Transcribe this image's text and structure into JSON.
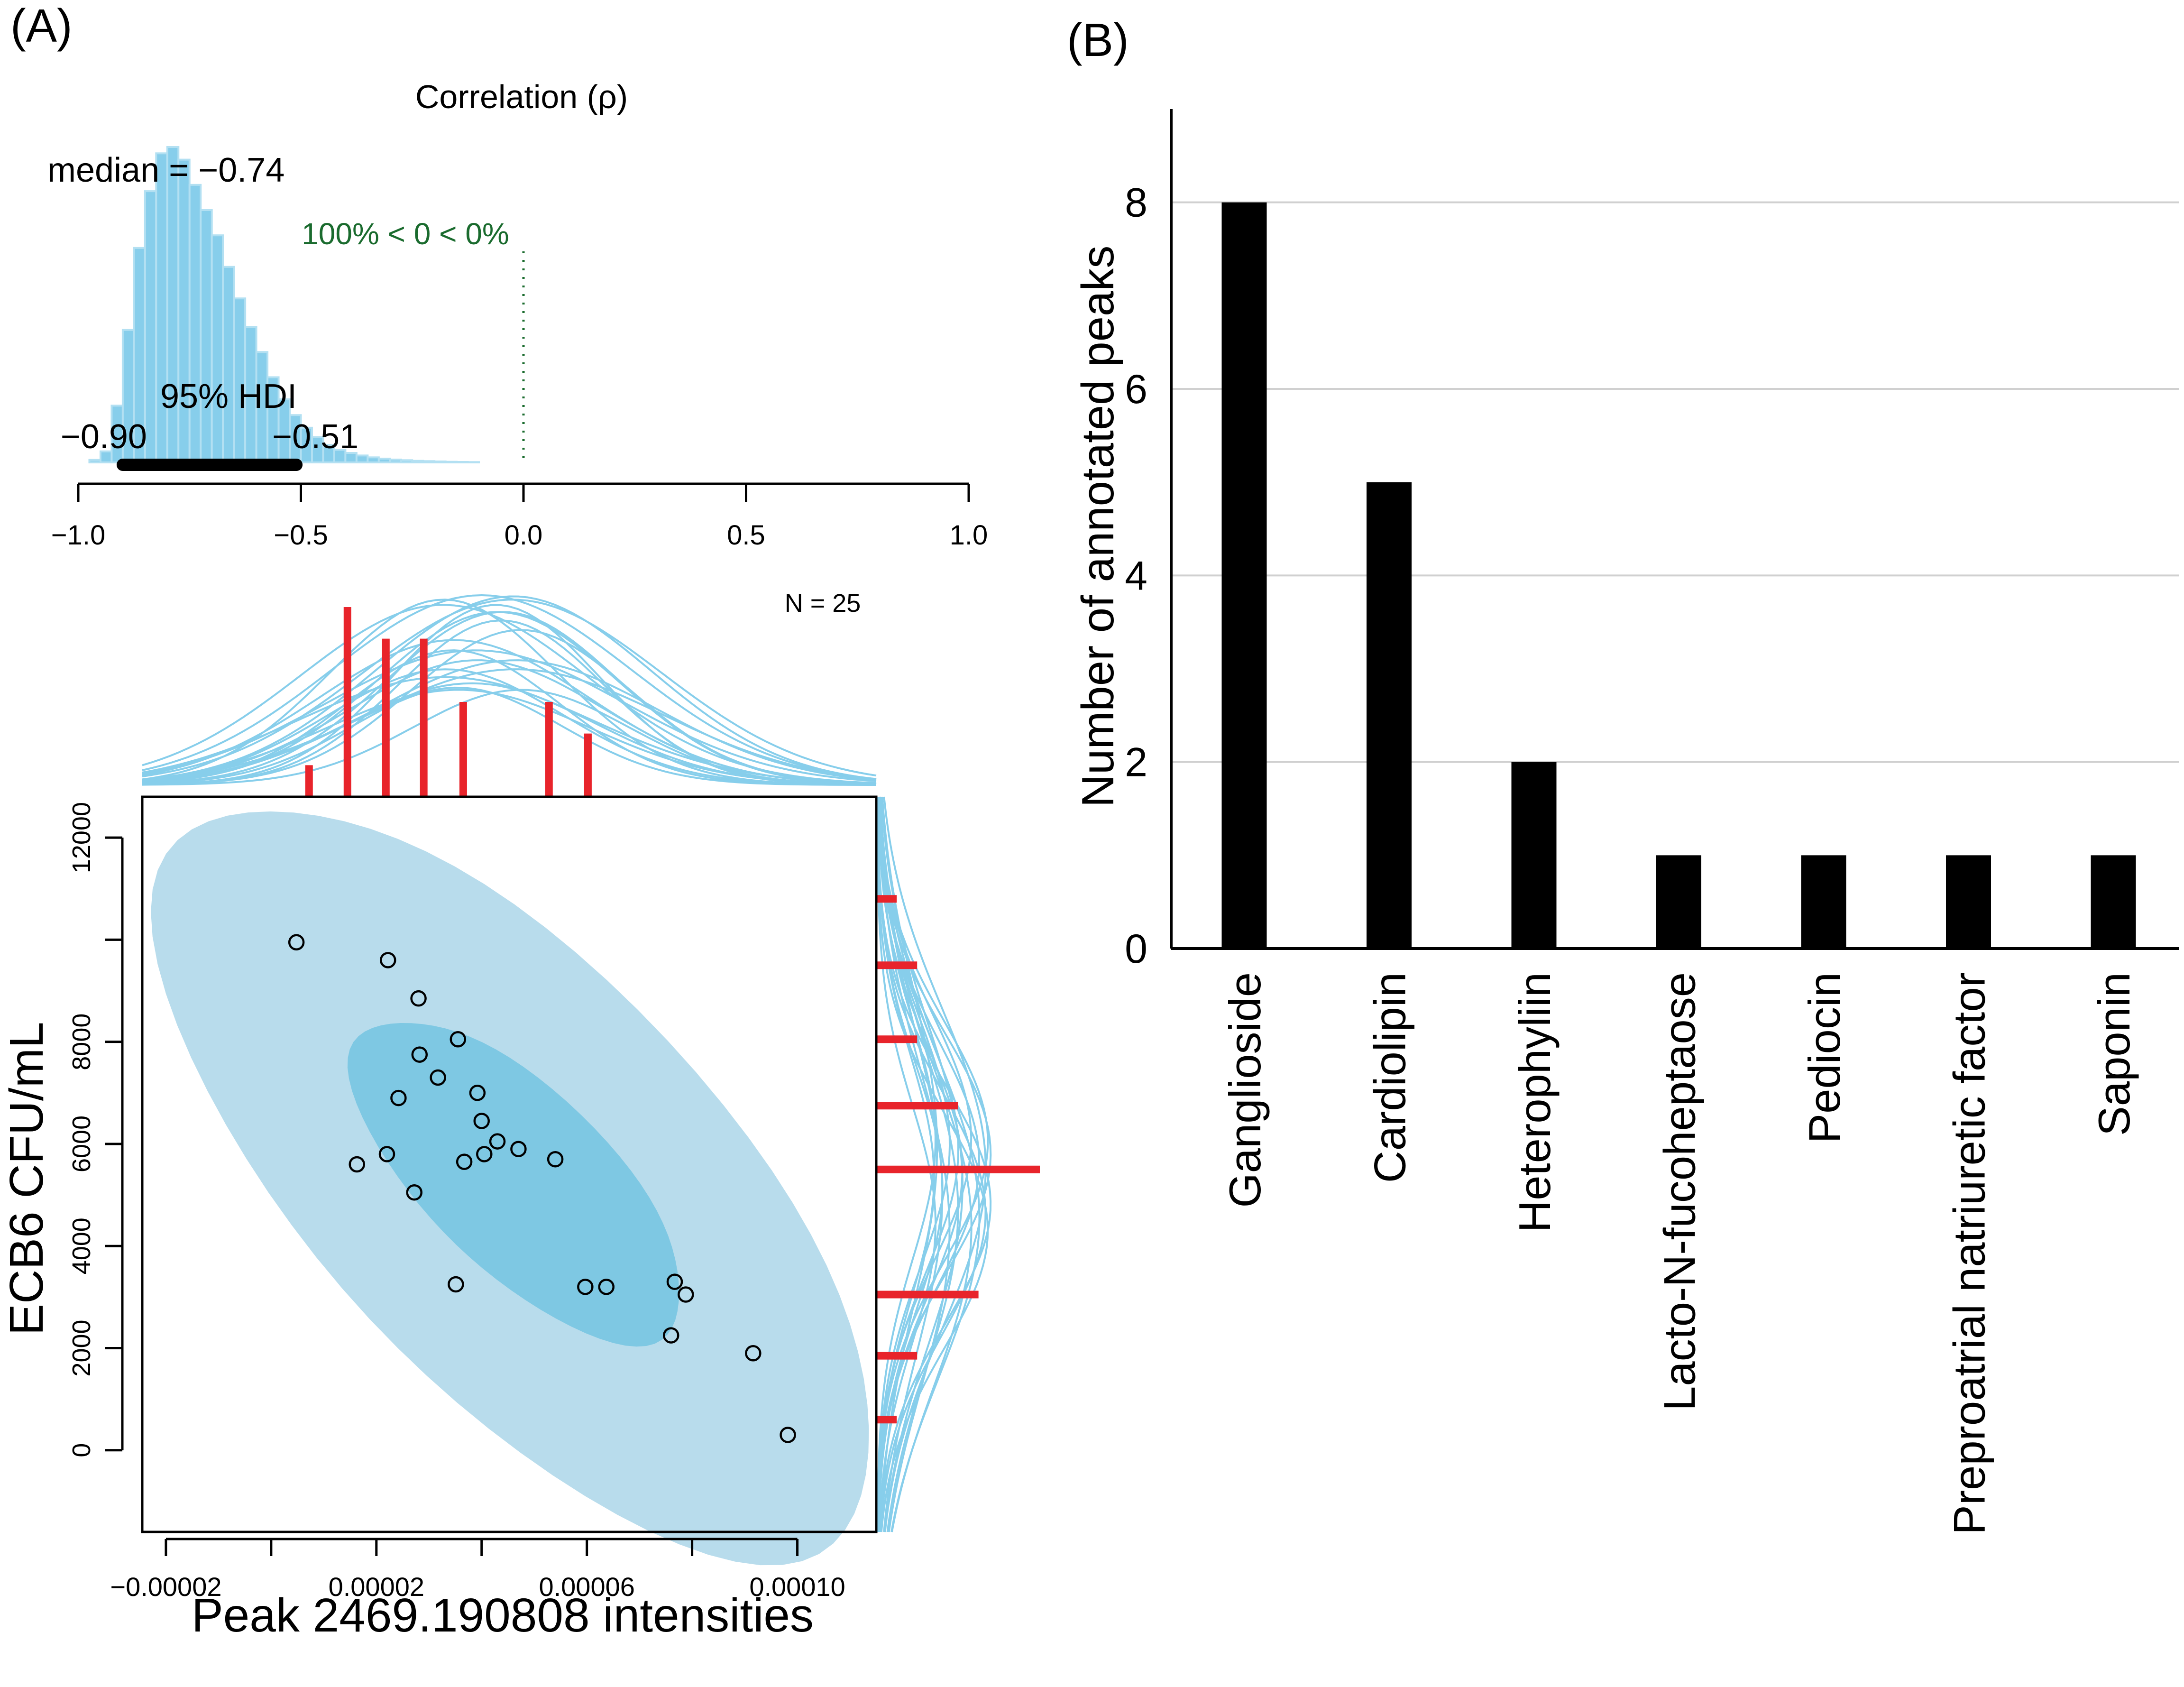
{
  "panel_labels": {
    "a": "(A)",
    "b": "(B)"
  },
  "colors": {
    "posterior_fill": "#87CEEB",
    "posterior_edge": "#b3e0f2",
    "ellipse_outer": "#b8dcec",
    "ellipse_inner": "#7ec8e3",
    "curves": "#87CEEB",
    "marginal_bars": "#e8242b",
    "hdi_bar": "#000000",
    "zero_line": "#1a6b2e",
    "bars_b": "#000000",
    "grid_b": "#d0d0d0"
  },
  "chart_data": [
    {
      "id": "posterior-correlation",
      "type": "histogram",
      "title": "Correlation (ρ)",
      "median_label": "median = −0.74",
      "median": -0.74,
      "comparison_label": "100% < 0 < 0%",
      "comparison_value": 0,
      "hdi_label": "95% HDI",
      "hdi": [
        -0.9,
        -0.51
      ],
      "hdi_low_label": "−0.90",
      "hdi_high_label": "−0.51",
      "xlim": [
        -1.0,
        1.0
      ],
      "xticks": [
        -1.0,
        -0.5,
        0.0,
        0.5,
        1.0
      ],
      "xtick_labels": [
        "−1.0",
        "−0.5",
        "0.0",
        "0.5",
        "1.0"
      ],
      "bin_width": 0.025,
      "bin_start": -0.975,
      "density": [
        0.008,
        0.035,
        0.18,
        0.42,
        0.68,
        0.86,
        0.98,
        1.0,
        0.96,
        0.88,
        0.8,
        0.72,
        0.62,
        0.52,
        0.43,
        0.35,
        0.27,
        0.2,
        0.15,
        0.11,
        0.08,
        0.055,
        0.04,
        0.03,
        0.022,
        0.016,
        0.012,
        0.009,
        0.007,
        0.005,
        0.004,
        0.003,
        0.002,
        0.0015,
        0.001
      ]
    },
    {
      "id": "scatter-ecb6-vs-peak",
      "type": "scatter",
      "n_label": "N = 25",
      "xlabel": "Peak 2469.190808 intensities",
      "ylabel": "ECB6 CFU/mL",
      "xlim": [
        -2.45e-05,
        0.000115
      ],
      "ylim": [
        -1600,
        12800
      ],
      "xticks": [
        -2e-05,
        2e-05,
        6e-05,
        0.0001
      ],
      "xtick_labels": [
        "−0.00002",
        "0.00002",
        "0.00006",
        "0.00010"
      ],
      "xticks_minor": [
        0.0,
        4e-05,
        8e-05
      ],
      "yticks": [
        0,
        2000,
        4000,
        6000,
        8000,
        10000,
        12000
      ],
      "ytick_labels": [
        "0",
        "2000",
        "4000",
        "6000",
        "8000",
        "",
        "12000"
      ],
      "points": [
        [
          4.8e-06,
          9950
        ],
        [
          2.22e-05,
          9600
        ],
        [
          2.8e-05,
          8850
        ],
        [
          2.82e-05,
          7750
        ],
        [
          2.42e-05,
          6900
        ],
        [
          3.17e-05,
          7300
        ],
        [
          3.55e-05,
          8050
        ],
        [
          3.92e-05,
          7000
        ],
        [
          4e-05,
          6450
        ],
        [
          4.3e-05,
          6050
        ],
        [
          4.7e-05,
          5900
        ],
        [
          4.05e-05,
          5800
        ],
        [
          5.4e-05,
          5700
        ],
        [
          3.67e-05,
          5650
        ],
        [
          2.2e-05,
          5800
        ],
        [
          1.63e-05,
          5600
        ],
        [
          2.72e-05,
          5050
        ],
        [
          3.51e-05,
          3250
        ],
        [
          5.97e-05,
          3200
        ],
        [
          6.37e-05,
          3200
        ],
        [
          7.67e-05,
          3300
        ],
        [
          7.88e-05,
          3050
        ],
        [
          7.6e-05,
          2250
        ],
        [
          9.16e-05,
          1900
        ],
        [
          9.82e-05,
          300
        ]
      ],
      "x_histogram": {
        "centers": [
          7.2e-06,
          1.45e-05,
          2.18e-05,
          2.9e-05,
          3.65e-05,
          4.6e-05,
          5.28e-05,
          6.02e-05
        ],
        "counts": [
          1,
          6,
          5,
          5,
          3,
          0,
          3,
          2
        ],
        "note": "hist bars in the top marginal"
      },
      "y_histogram": {
        "centers": [
          10800,
          9500,
          8050,
          6750,
          5500,
          3050,
          1850,
          600
        ],
        "counts": [
          1,
          2,
          2,
          4,
          8,
          5,
          2,
          1
        ]
      }
    },
    {
      "id": "annotated-peaks",
      "type": "bar",
      "ylabel": "Number of annotated peaks",
      "categories": [
        "Ganglioside",
        "Cardiolipin",
        "Heterophyliin",
        "Lacto-N-fucoheptaose",
        "Pediocin",
        "Preproatrial natriuretic factor",
        "Saponin"
      ],
      "values": [
        8,
        5,
        2,
        1,
        1,
        1,
        1
      ],
      "ylim": [
        0,
        9
      ],
      "yticks": [
        0,
        2,
        4,
        6,
        8
      ],
      "ytick_labels": [
        "0",
        "2",
        "4",
        "6",
        "8"
      ],
      "grid": true
    }
  ]
}
